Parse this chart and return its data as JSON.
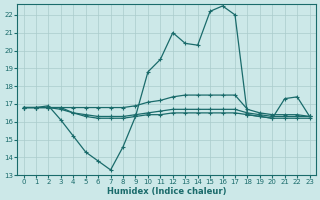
{
  "xlabel": "Humidex (Indice chaleur)",
  "bg_color": "#cce8e8",
  "grid_color": "#aacccc",
  "line_color": "#1a6b6b",
  "xlim": [
    -0.5,
    23.5
  ],
  "ylim": [
    13,
    22.6
  ],
  "yticks": [
    13,
    14,
    15,
    16,
    17,
    18,
    19,
    20,
    21,
    22
  ],
  "xticks": [
    0,
    1,
    2,
    3,
    4,
    5,
    6,
    7,
    8,
    9,
    10,
    11,
    12,
    13,
    14,
    15,
    16,
    17,
    18,
    19,
    20,
    21,
    22,
    23
  ],
  "line1_x": [
    0,
    1,
    2,
    3,
    4,
    5,
    6,
    7,
    8,
    9,
    10,
    11,
    12,
    13,
    14,
    15,
    16,
    17,
    18,
    19,
    20,
    21,
    22,
    23
  ],
  "line1_y": [
    16.8,
    16.8,
    16.9,
    16.1,
    15.2,
    14.3,
    13.8,
    13.3,
    14.6,
    16.3,
    18.8,
    19.5,
    21.0,
    20.4,
    20.3,
    22.2,
    22.5,
    22.0,
    16.4,
    16.3,
    16.2,
    17.3,
    17.4,
    16.3
  ],
  "line2_x": [
    0,
    1,
    2,
    3,
    4,
    5,
    6,
    7,
    8,
    9,
    10,
    11,
    12,
    13,
    14,
    15,
    16,
    17,
    18,
    19,
    20,
    21,
    22,
    23
  ],
  "line2_y": [
    16.8,
    16.8,
    16.8,
    16.8,
    16.8,
    16.8,
    16.8,
    16.8,
    16.8,
    16.9,
    17.1,
    17.2,
    17.4,
    17.5,
    17.5,
    17.5,
    17.5,
    17.5,
    16.7,
    16.5,
    16.4,
    16.4,
    16.4,
    16.3
  ],
  "line3_x": [
    0,
    1,
    2,
    3,
    4,
    5,
    6,
    7,
    8,
    9,
    10,
    11,
    12,
    13,
    14,
    15,
    16,
    17,
    18,
    19,
    20,
    21,
    22,
    23
  ],
  "line3_y": [
    16.8,
    16.8,
    16.8,
    16.8,
    16.5,
    16.3,
    16.2,
    16.2,
    16.2,
    16.3,
    16.4,
    16.4,
    16.5,
    16.5,
    16.5,
    16.5,
    16.5,
    16.5,
    16.4,
    16.3,
    16.2,
    16.2,
    16.2,
    16.2
  ],
  "line4_x": [
    0,
    1,
    2,
    3,
    4,
    5,
    6,
    7,
    8,
    9,
    10,
    11,
    12,
    13,
    14,
    15,
    16,
    17,
    18,
    19,
    20,
    21,
    22,
    23
  ],
  "line4_y": [
    16.8,
    16.8,
    16.8,
    16.7,
    16.5,
    16.4,
    16.3,
    16.3,
    16.3,
    16.4,
    16.5,
    16.6,
    16.7,
    16.7,
    16.7,
    16.7,
    16.7,
    16.7,
    16.5,
    16.4,
    16.3,
    16.3,
    16.3,
    16.3
  ],
  "marker": "+"
}
